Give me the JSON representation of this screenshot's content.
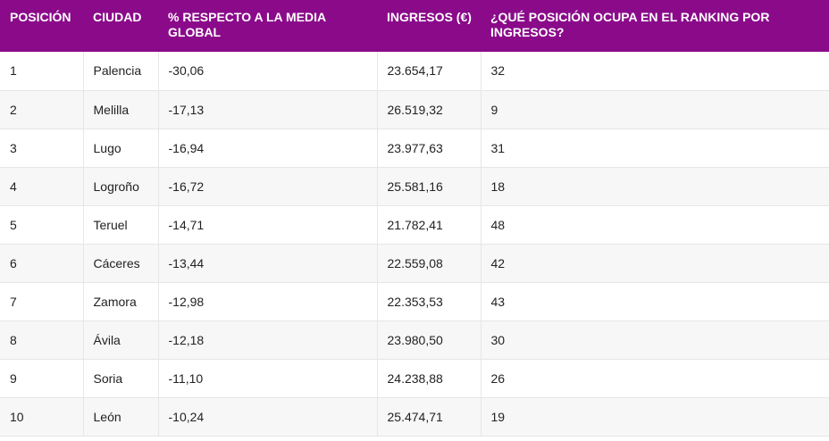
{
  "header": {
    "columns": [
      "POSICIÓN",
      "CIUDAD",
      "% RESPECTO A LA MEDIA GLOBAL",
      "INGRESOS (€)",
      "¿QUÉ POSICIÓN OCUPA EN EL RANKING POR INGRESOS?"
    ]
  },
  "rows": [
    [
      "1",
      "Palencia",
      "-30,06",
      "23.654,17",
      "32"
    ],
    [
      "2",
      "Melilla",
      "-17,13",
      "26.519,32",
      "9"
    ],
    [
      "3",
      "Lugo",
      "-16,94",
      "23.977,63",
      "31"
    ],
    [
      "4",
      "Logroño",
      "-16,72",
      "25.581,16",
      "18"
    ],
    [
      "5",
      "Teruel",
      "-14,71",
      "21.782,41",
      "48"
    ],
    [
      "6",
      "Cáceres",
      "-13,44",
      "22.559,08",
      "42"
    ],
    [
      "7",
      "Zamora",
      "-12,98",
      "22.353,53",
      "43"
    ],
    [
      "8",
      "Ávila",
      "-12,18",
      "23.980,50",
      "30"
    ],
    [
      "9",
      "Soria",
      "-11,10",
      "24.238,88",
      "26"
    ],
    [
      "10",
      "León",
      "-10,24",
      "25.474,71",
      "19"
    ]
  ],
  "colors": {
    "header_bg": "#8a0a8a",
    "header_text": "#ffffff",
    "row_alt_bg": "#f7f7f7",
    "border": "#e6e6e6"
  }
}
